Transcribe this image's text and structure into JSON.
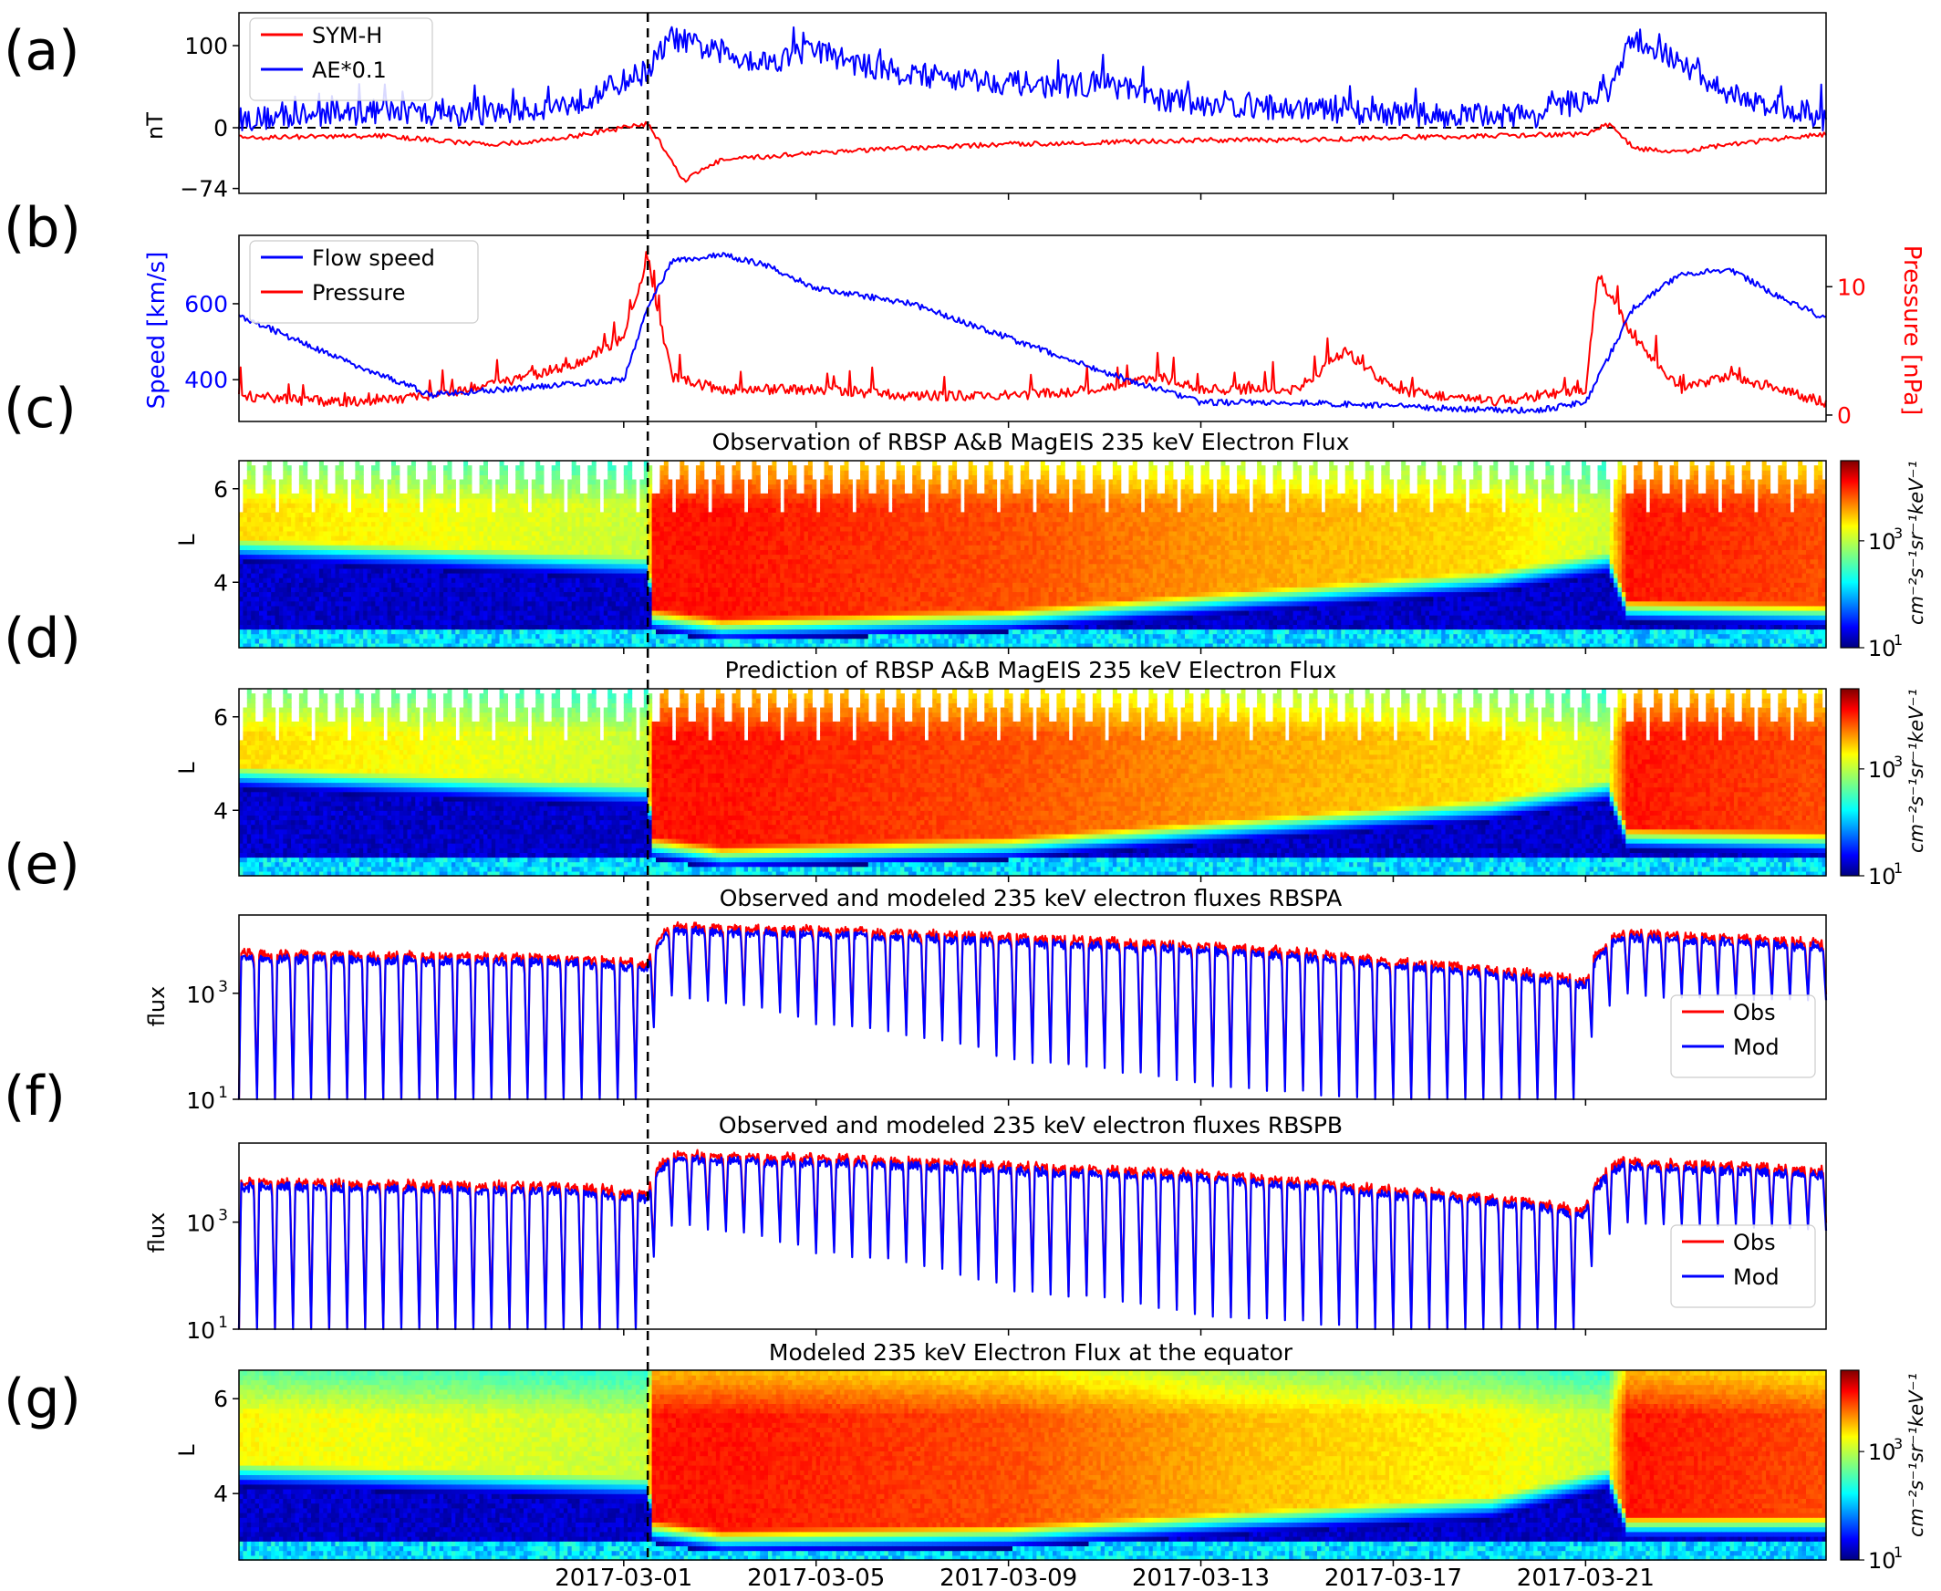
{
  "figure": {
    "panel_letters": [
      "(a)",
      "(b)",
      "(c)",
      "(d)",
      "(e)",
      "(f)",
      "(g)"
    ],
    "date_ticks": [
      {
        "date": "2017-03-01",
        "label": "2017-03-01"
      },
      {
        "date": "2017-03-05",
        "label": "2017-03-05"
      },
      {
        "date": "2017-03-09",
        "label": "2017-03-09"
      },
      {
        "date": "2017-03-13",
        "label": "2017-03-13"
      },
      {
        "date": "2017-03-17",
        "label": "2017-03-17"
      },
      {
        "date": "2017-03-21",
        "label": "2017-03-21"
      }
    ],
    "x_range": [
      "2017-02-21",
      "2017-03-26"
    ],
    "event_marker_date": "2017-03-01T12:00",
    "colorbar_label": "cm⁻²s⁻¹sr⁻¹keV⁻¹",
    "colorbar_ticks": [
      "10³",
      "10¹"
    ],
    "colormap": "jet",
    "colors": {
      "blue": "#0000ff",
      "red": "#ff0000",
      "axis": "#000000"
    }
  },
  "chart_data": [
    {
      "panel": "(a)",
      "type": "line",
      "title": "",
      "ylabel": "nT",
      "yticks": [
        {
          "v": 100,
          "label": "100"
        },
        {
          "v": 0,
          "label": "0"
        },
        {
          "v": -74,
          "label": "−74"
        }
      ],
      "ylim": [
        -80,
        140
      ],
      "reference_line": 0,
      "legend": {
        "placement": "top-left",
        "entries": [
          "SYM-H",
          "AE*0.1"
        ]
      },
      "series": [
        {
          "name": "SYM-H",
          "color": "#ff0000",
          "x": [
            "2017-02-21",
            "2017-02-24",
            "2017-02-26",
            "2017-02-27",
            "2017-02-28",
            "2017-03-01T12:00",
            "2017-03-02",
            "2017-03-02T06:00",
            "2017-03-02T12:00",
            "2017-03-03",
            "2017-03-05",
            "2017-03-07",
            "2017-03-09",
            "2017-03-11",
            "2017-03-13",
            "2017-03-15",
            "2017-03-17",
            "2017-03-19",
            "2017-03-21",
            "2017-03-21T12:00",
            "2017-03-22",
            "2017-03-23",
            "2017-03-24",
            "2017-03-26"
          ],
          "y": [
            -12,
            -10,
            -20,
            -18,
            -10,
            5,
            -40,
            -65,
            -55,
            -40,
            -30,
            -25,
            -20,
            -18,
            -15,
            -15,
            -12,
            -10,
            -8,
            5,
            -25,
            -30,
            -20,
            -8
          ]
        },
        {
          "name": "AE*0.1",
          "color": "#0000ff",
          "x": [
            "2017-02-21",
            "2017-02-24",
            "2017-02-26",
            "2017-02-28",
            "2017-03-01T12:00",
            "2017-03-02",
            "2017-03-03",
            "2017-03-04",
            "2017-03-05",
            "2017-03-06",
            "2017-03-07",
            "2017-03-08",
            "2017-03-09",
            "2017-03-10",
            "2017-03-11",
            "2017-03-12",
            "2017-03-14",
            "2017-03-16",
            "2017-03-18",
            "2017-03-20",
            "2017-03-21T12:00",
            "2017-03-22",
            "2017-03-23",
            "2017-03-24",
            "2017-03-26"
          ],
          "y": [
            10,
            20,
            15,
            30,
            70,
            110,
            90,
            80,
            95,
            75,
            65,
            60,
            55,
            50,
            55,
            35,
            25,
            20,
            15,
            15,
            45,
            110,
            75,
            40,
            10
          ]
        }
      ]
    },
    {
      "panel": "(b)",
      "type": "line",
      "title": "",
      "ylabel": "Speed [km/s]",
      "ylabel_right": "Pressure [nPa]",
      "yticks": [
        {
          "v": 400,
          "label": "400"
        },
        {
          "v": 600,
          "label": "600"
        }
      ],
      "yticks_right": [
        {
          "v": 0,
          "label": "0"
        },
        {
          "v": 10,
          "label": "10"
        }
      ],
      "ylim": [
        290,
        780
      ],
      "ylim_right": [
        -0.5,
        14
      ],
      "legend": {
        "placement": "top-left",
        "entries": [
          "Flow speed",
          "Pressure"
        ]
      },
      "series": [
        {
          "name": "Flow speed",
          "color": "#0000ff",
          "axis": "left",
          "x": [
            "2017-02-21",
            "2017-02-23",
            "2017-02-25",
            "2017-02-27",
            "2017-03-01",
            "2017-03-01T12:00",
            "2017-03-02",
            "2017-03-03",
            "2017-03-04",
            "2017-03-05",
            "2017-03-07",
            "2017-03-09",
            "2017-03-11",
            "2017-03-12",
            "2017-03-13",
            "2017-03-15",
            "2017-03-17",
            "2017-03-19",
            "2017-03-20",
            "2017-03-21",
            "2017-03-22",
            "2017-03-23",
            "2017-03-24",
            "2017-03-25",
            "2017-03-26"
          ],
          "y": [
            570,
            460,
            360,
            380,
            400,
            590,
            710,
            730,
            700,
            640,
            600,
            510,
            420,
            380,
            340,
            340,
            330,
            320,
            320,
            340,
            590,
            680,
            690,
            620,
            560
          ]
        },
        {
          "name": "Pressure",
          "color": "#ff0000",
          "axis": "right",
          "x": [
            "2017-02-21",
            "2017-02-23",
            "2017-02-25",
            "2017-02-27",
            "2017-02-28",
            "2017-03-01",
            "2017-03-01T12:00",
            "2017-03-02",
            "2017-03-03",
            "2017-03-05",
            "2017-03-07",
            "2017-03-09",
            "2017-03-11",
            "2017-03-12",
            "2017-03-13",
            "2017-03-15",
            "2017-03-16",
            "2017-03-17",
            "2017-03-19",
            "2017-03-20",
            "2017-03-21",
            "2017-03-21T06:00",
            "2017-03-22",
            "2017-03-23",
            "2017-03-24",
            "2017-03-26"
          ],
          "y": [
            1.5,
            1.0,
            1.5,
            3.0,
            4.0,
            6.0,
            12.0,
            3.0,
            2.0,
            2.0,
            1.5,
            1.5,
            2.0,
            3.0,
            2.0,
            2.0,
            5.0,
            2.0,
            1.0,
            1.5,
            2.0,
            11.0,
            6.0,
            2.0,
            3.0,
            1.0
          ]
        }
      ]
    },
    {
      "panel": "(c)",
      "type": "heatmap",
      "title": "Observation of RBSP A&B MagEIS 235 keV Electron Flux",
      "ylabel": "L",
      "yticks": [
        {
          "v": 4,
          "label": "4"
        },
        {
          "v": 6,
          "label": "6"
        }
      ],
      "ylim": [
        2.6,
        6.6
      ],
      "orbit_sampled": true,
      "log10_flux_range": [
        1,
        4.5
      ],
      "profile_times": [
        "2017-02-21",
        "2017-03-01T11:00",
        "2017-03-01T14:00",
        "2017-03-03",
        "2017-03-09",
        "2017-03-14",
        "2017-03-19",
        "2017-03-21T10:00",
        "2017-03-21T20:00",
        "2017-03-26"
      ],
      "inner_edge_L": [
        4.9,
        4.5,
        3.4,
        3.2,
        3.4,
        3.8,
        4.2,
        4.6,
        3.6,
        3.5
      ],
      "outer_log_flux": [
        3.3,
        3.0,
        4.0,
        4.0,
        3.8,
        3.5,
        3.3,
        3.0,
        4.0,
        3.8
      ]
    },
    {
      "panel": "(d)",
      "type": "heatmap",
      "title": "Prediction of RBSP A&B MagEIS 235 keV Electron Flux",
      "ylabel": "L",
      "yticks": [
        {
          "v": 4,
          "label": "4"
        },
        {
          "v": 6,
          "label": "6"
        }
      ],
      "ylim": [
        2.6,
        6.6
      ],
      "orbit_sampled": true,
      "log10_flux_range": [
        1,
        4.5
      ],
      "profile_times": [
        "2017-02-21",
        "2017-03-01T11:00",
        "2017-03-01T14:00",
        "2017-03-03",
        "2017-03-09",
        "2017-03-14",
        "2017-03-19",
        "2017-03-21T10:00",
        "2017-03-21T20:00",
        "2017-03-26"
      ],
      "inner_edge_L": [
        4.9,
        4.5,
        3.4,
        3.2,
        3.4,
        3.8,
        4.2,
        4.6,
        3.6,
        3.5
      ],
      "outer_log_flux": [
        3.3,
        3.0,
        4.0,
        4.0,
        3.8,
        3.5,
        3.3,
        3.0,
        4.0,
        3.8
      ]
    },
    {
      "panel": "(e)",
      "type": "line",
      "title": "Observed and modeled 235 keV electron fluxes RBSPA",
      "ylabel": "flux",
      "yscale": "log",
      "ylim": [
        10,
        30000
      ],
      "yticks": [
        {
          "v": 1000,
          "base": "10",
          "exp": "3"
        },
        {
          "v": 10,
          "base": "10",
          "exp": "1"
        }
      ],
      "legend": {
        "placement": "lower-right",
        "entries": [
          "Obs",
          "Mod"
        ]
      },
      "series": [
        {
          "name": "Obs",
          "color": "#ff0000"
        },
        {
          "name": "Mod",
          "color": "#0000ff"
        }
      ],
      "envelope_x": [
        "2017-02-21",
        "2017-02-28",
        "2017-03-01T12:00",
        "2017-03-02",
        "2017-03-05",
        "2017-03-09",
        "2017-03-13",
        "2017-03-17",
        "2017-03-21",
        "2017-03-21T18:00",
        "2017-03-26"
      ],
      "envelope_peak": [
        5000,
        4000,
        3000,
        16000,
        14000,
        10000,
        7000,
        3500,
        1500,
        12000,
        8000
      ],
      "envelope_trough": [
        10,
        10,
        10,
        1000,
        300,
        60,
        20,
        10,
        10,
        1000,
        800
      ]
    },
    {
      "panel": "(f)",
      "type": "line",
      "title": "Observed and modeled 235 keV electron fluxes RBSPB",
      "ylabel": "flux",
      "yscale": "log",
      "ylim": [
        10,
        30000
      ],
      "yticks": [
        {
          "v": 1000,
          "base": "10",
          "exp": "3"
        },
        {
          "v": 10,
          "base": "10",
          "exp": "1"
        }
      ],
      "legend": {
        "placement": "lower-right",
        "entries": [
          "Obs",
          "Mod"
        ]
      },
      "series": [
        {
          "name": "Obs",
          "color": "#ff0000"
        },
        {
          "name": "Mod",
          "color": "#0000ff"
        }
      ],
      "envelope_x": [
        "2017-02-21",
        "2017-02-28",
        "2017-03-01T12:00",
        "2017-03-02",
        "2017-03-05",
        "2017-03-09",
        "2017-03-13",
        "2017-03-17",
        "2017-03-21",
        "2017-03-21T18:00",
        "2017-03-26"
      ],
      "envelope_peak": [
        5000,
        4000,
        3000,
        16000,
        14000,
        10000,
        7000,
        3500,
        1500,
        12000,
        8000
      ],
      "envelope_trough": [
        10,
        10,
        10,
        1000,
        300,
        60,
        20,
        10,
        10,
        1000,
        800
      ]
    },
    {
      "panel": "(g)",
      "type": "heatmap",
      "title": "Modeled 235 keV Electron Flux at the equator",
      "ylabel": "L",
      "yticks": [
        {
          "v": 4,
          "label": "4"
        },
        {
          "v": 6,
          "label": "6"
        }
      ],
      "ylim": [
        2.6,
        6.6
      ],
      "orbit_sampled": false,
      "log10_flux_range": [
        1,
        4.5
      ],
      "profile_times": [
        "2017-02-21",
        "2017-03-01T11:00",
        "2017-03-01T14:00",
        "2017-03-03",
        "2017-03-09",
        "2017-03-14",
        "2017-03-19",
        "2017-03-21T10:00",
        "2017-03-21T20:00",
        "2017-03-26"
      ],
      "inner_edge_L": [
        4.6,
        4.3,
        3.4,
        3.2,
        3.3,
        3.6,
        3.9,
        4.5,
        3.5,
        3.5
      ],
      "outer_log_flux": [
        3.2,
        3.0,
        4.0,
        4.0,
        3.8,
        3.4,
        3.2,
        3.0,
        4.0,
        3.8
      ]
    }
  ]
}
